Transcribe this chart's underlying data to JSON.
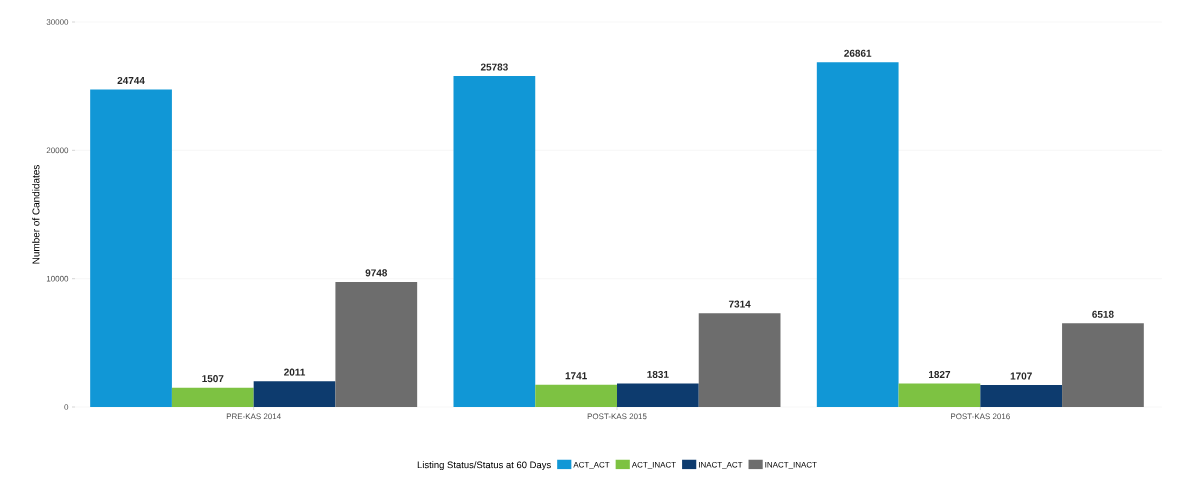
{
  "chart_data": {
    "type": "bar",
    "ylabel": "Number of Candidates",
    "legend_title": "Listing Status/Status at 60 Days",
    "categories": [
      "PRE-KAS 2014",
      "POST-KAS 2015",
      "POST-KAS 2016"
    ],
    "series": [
      {
        "name": "ACT_ACT",
        "color": "#1197d6",
        "values": [
          24744,
          25783,
          26861
        ]
      },
      {
        "name": "ACT_INACT",
        "color": "#7dc242",
        "values": [
          1507,
          1741,
          1827
        ]
      },
      {
        "name": "INACT_ACT",
        "color": "#0d3b6e",
        "values": [
          2011,
          1831,
          1707
        ]
      },
      {
        "name": "INACT_INACT",
        "color": "#6d6d6d",
        "values": [
          9748,
          7314,
          6518
        ]
      }
    ],
    "ylim": [
      0,
      30000
    ],
    "yticks": [
      0,
      10000,
      20000,
      30000
    ],
    "grid": "y",
    "legend": "bottom",
    "data_labels": true
  }
}
